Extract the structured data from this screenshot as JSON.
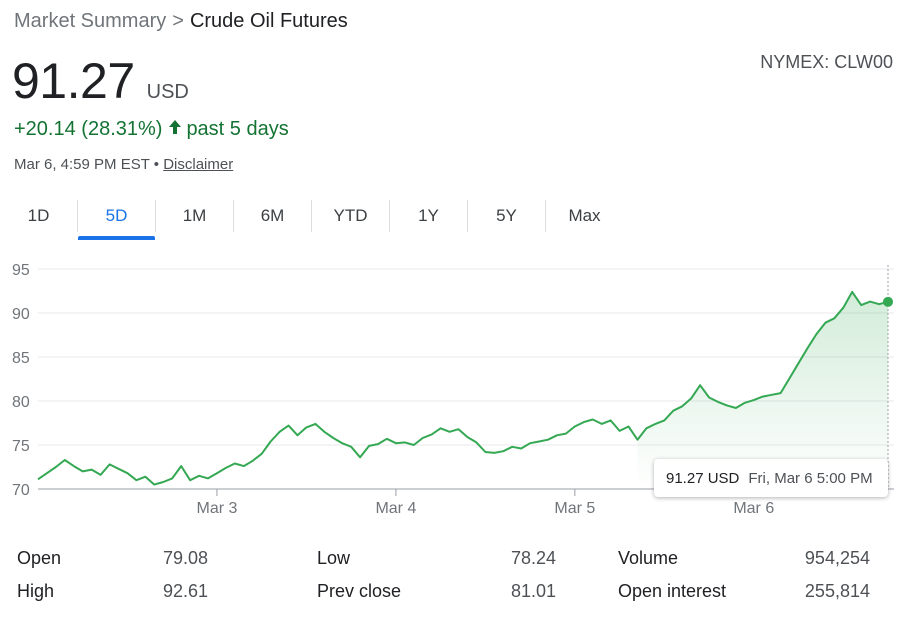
{
  "breadcrumb": {
    "parent": "Market Summary",
    "separator": ">",
    "current": "Crude Oil Futures"
  },
  "exchange": "NYMEX: CLW00",
  "quote": {
    "price": "91.27",
    "currency": "USD"
  },
  "change": {
    "text": "+20.14 (28.31%)",
    "period": "past 5 days",
    "color": "#137333"
  },
  "timestamp": {
    "text": "Mar 6, 4:59 PM EST",
    "bullet": "•",
    "disclaimer": "Disclaimer"
  },
  "tabs": [
    {
      "label": "1D"
    },
    {
      "label": "5D"
    },
    {
      "label": "1M"
    },
    {
      "label": "6M"
    },
    {
      "label": "YTD"
    },
    {
      "label": "1Y"
    },
    {
      "label": "5Y"
    },
    {
      "label": "Max"
    }
  ],
  "active_tab": "5D",
  "tooltip": {
    "price": "91.27 USD",
    "date": "Fri, Mar 6 5:00 PM"
  },
  "stats": [
    {
      "label": "Open",
      "value": "79.08"
    },
    {
      "label": "High",
      "value": "92.61"
    },
    {
      "label": "Low",
      "value": "78.24"
    },
    {
      "label": "Prev close",
      "value": "81.01"
    },
    {
      "label": "Volume",
      "value": "954,254"
    },
    {
      "label": "Open interest",
      "value": "255,814"
    }
  ],
  "chart_data": {
    "type": "area",
    "ylim": [
      70,
      95
    ],
    "y_ticks": [
      "95",
      "90",
      "85",
      "80",
      "75",
      "70"
    ],
    "x_ticks": [
      "Mar 3",
      "Mar 4",
      "Mar 5",
      "Mar 6"
    ],
    "line_color": "#34a853",
    "x": [
      0,
      0.05,
      0.1,
      0.15,
      0.2,
      0.25,
      0.3,
      0.35,
      0.4,
      0.45,
      0.5,
      0.55,
      0.6,
      0.65,
      0.7,
      0.75,
      0.8,
      0.85,
      0.9,
      0.95,
      1.0,
      1.05,
      1.1,
      1.15,
      1.2,
      1.25,
      1.3,
      1.35,
      1.4,
      1.45,
      1.5,
      1.55,
      1.6,
      1.65,
      1.7,
      1.75,
      1.8,
      1.85,
      1.9,
      1.95,
      2.0,
      2.05,
      2.1,
      2.15,
      2.2,
      2.25,
      2.3,
      2.35,
      2.4,
      2.45,
      2.5,
      2.55,
      2.6,
      2.65,
      2.7,
      2.75,
      2.8,
      2.85,
      2.9,
      2.95,
      3.0,
      3.05,
      3.1,
      3.15,
      3.2,
      3.25,
      3.3,
      3.35,
      3.4,
      3.45,
      3.5,
      3.55,
      3.6,
      3.65,
      3.7,
      3.75,
      3.8,
      3.85,
      3.9,
      3.95,
      4.0,
      4.05,
      4.1,
      4.15,
      4.2,
      4.25,
      4.3,
      4.35,
      4.4,
      4.45,
      4.5,
      4.55,
      4.6,
      4.65,
      4.7,
      4.75
    ],
    "y": [
      71.1,
      71.8,
      72.5,
      73.3,
      72.6,
      72.0,
      72.2,
      71.6,
      72.8,
      72.3,
      71.8,
      71.0,
      71.4,
      70.5,
      70.8,
      71.2,
      72.6,
      71.0,
      71.5,
      71.2,
      71.8,
      72.4,
      72.9,
      72.6,
      73.2,
      74.0,
      75.4,
      76.5,
      77.2,
      76.1,
      77.0,
      77.4,
      76.5,
      75.8,
      75.2,
      74.8,
      73.6,
      74.9,
      75.1,
      75.7,
      75.2,
      75.3,
      75.0,
      75.8,
      76.2,
      76.9,
      76.5,
      76.8,
      75.9,
      75.3,
      74.2,
      74.1,
      74.3,
      74.8,
      74.6,
      75.2,
      75.4,
      75.6,
      76.1,
      76.3,
      77.1,
      77.6,
      77.9,
      77.4,
      77.8,
      76.6,
      77.1,
      75.6,
      76.9,
      77.4,
      77.8,
      78.9,
      79.4,
      80.3,
      81.8,
      80.4,
      79.9,
      79.5,
      79.2,
      79.8,
      80.1,
      80.5,
      80.7,
      80.9,
      82.6,
      84.3,
      86.0,
      87.6,
      88.9,
      89.4,
      90.6,
      92.4,
      90.9,
      91.3,
      91.0,
      91.27
    ]
  }
}
